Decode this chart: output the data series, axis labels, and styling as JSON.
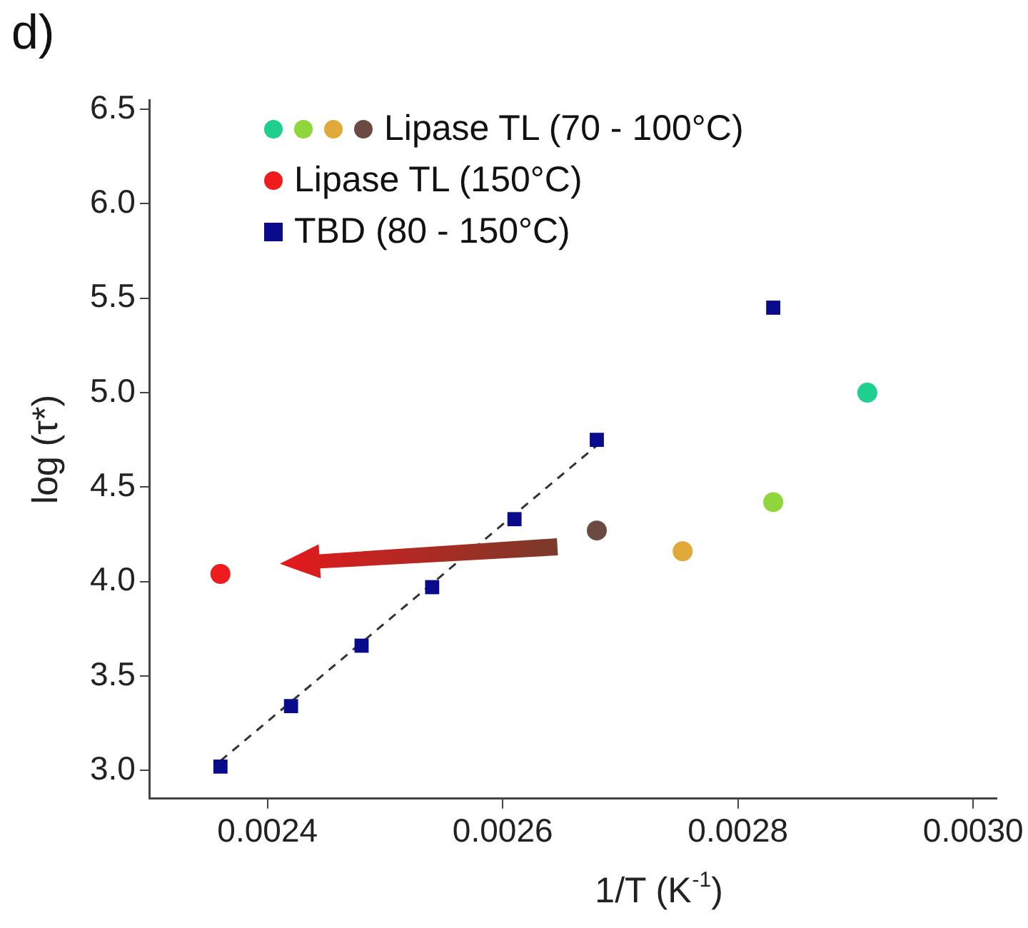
{
  "chart_data": {
    "type": "scatter",
    "annotations": [
      "d)"
    ],
    "xlabel": "1/T (K$^{-1}$)",
    "ylabel": "log (τ*)",
    "xlim": [
      0.0023,
      0.00302
    ],
    "xticks": [
      0.0024,
      0.0026,
      0.0028,
      {
        "value": 0.003,
        "label": "0.0030"
      }
    ],
    "ylim": [
      2.85,
      6.55
    ],
    "yticks": [
      {
        "value": 3,
        "label": "3.0"
      },
      {
        "value": 3.5,
        "label": "3.5"
      },
      {
        "value": 4,
        "label": "4.0"
      },
      {
        "value": 4.5,
        "label": "4.5"
      },
      {
        "value": 5,
        "label": "5.0"
      },
      {
        "value": 5.5,
        "label": "5.5"
      },
      {
        "value": 6,
        "label": "6.0"
      },
      {
        "value": 6.5,
        "label": "6.5"
      }
    ],
    "grid": false,
    "legend": "top left",
    "series": [
      {
        "name": "Lipase TL (70 - 100°C)",
        "marker": "circle",
        "colors": [
          "#1fcf8e",
          "#8fd63c",
          "#e0a93a",
          "#6b4a44"
        ],
        "x": [
          0.00291,
          0.00283,
          0.002753,
          0.00268
        ],
        "values": [
          5.0,
          4.42,
          4.16,
          4.27
        ]
      },
      {
        "name": "Lipase TL (150°C)",
        "marker": "circle",
        "color": "#ee1c1c",
        "x": [
          0.00236
        ],
        "values": [
          4.04
        ]
      },
      {
        "name": "TBD (80 - 150°C)",
        "marker": "square",
        "color": "#0a0a8c",
        "x": [
          0.00236,
          0.00242,
          0.00248,
          0.00254,
          0.00261,
          0.00268,
          0.00283
        ],
        "values": [
          3.02,
          3.34,
          3.66,
          3.97,
          4.33,
          4.75,
          5.45
        ]
      },
      {
        "type": "line",
        "line_style": "dashed",
        "color": "#333333",
        "x": [
          0.00236,
          0.00268
        ],
        "values": [
          3.05,
          4.72
        ]
      }
    ]
  }
}
